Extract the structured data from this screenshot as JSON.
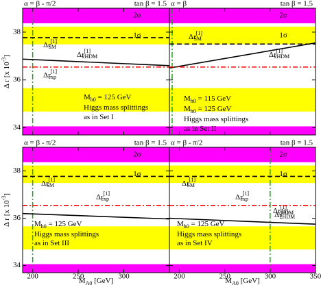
{
  "chart_data": [
    {
      "type": "line",
      "title": "α = β - π/2",
      "subtitle": "tan β = 1.5",
      "x_label": {
        "main": "M",
        "sub": "A0",
        "rest": " [GeV]"
      },
      "y_label": {
        "main": "Δ r [x 10",
        "sup": "-3",
        "rest": "]"
      },
      "xlim": [
        189,
        350
      ],
      "ylim": [
        33.7,
        39.0
      ],
      "xticks": [
        200,
        250,
        300
      ],
      "yticks": [
        34,
        36,
        38
      ],
      "show_xticklabels": false,
      "show_yticklabels": true,
      "bands": [
        {
          "lower": 38.37,
          "upper": 39.0,
          "color": "#ff00ff",
          "label": "2σ"
        },
        {
          "lower": 37.49,
          "upper": 38.23,
          "color": "#ffff00",
          "label": "1σ"
        },
        {
          "lower": 34.68,
          "upper": 35.66,
          "color": "#ffff00"
        },
        {
          "lower": 33.7,
          "upper": 34.06,
          "color": "#ff00ff"
        }
      ],
      "vlines": [
        {
          "x": 200,
          "color": "#1aa31a"
        }
      ],
      "x": [
        189,
        350
      ],
      "series": [
        {
          "name": {
            "main": "Δr",
            "sub": "SM",
            "sup": "[1]"
          },
          "color": "#000000",
          "dash": "dashed",
          "values": [
            37.77,
            37.77
          ]
        },
        {
          "name": {
            "main": "Δr",
            "sub": "2HDM",
            "sup": "[1]"
          },
          "color": "#000000",
          "dash": "solid",
          "values": [
            36.87,
            36.6
          ]
        },
        {
          "name": {
            "main": "Δr",
            "sub": "exp",
            "sup": "[1]"
          },
          "color": "#ff0000",
          "dash": "dashdot",
          "values": [
            36.54,
            36.54
          ]
        }
      ],
      "annotations": [
        {
          "main": "M",
          "sub": "h0",
          "rest": " = 125 GeV"
        },
        {
          "main": "Higgs mass splittings"
        },
        {
          "main": "as in Set I"
        }
      ]
    },
    {
      "type": "line",
      "title": "α = β",
      "subtitle": "tan β = 1.5",
      "xlim": [
        189,
        350
      ],
      "ylim": [
        33.7,
        39.0
      ],
      "xticks": [
        200,
        250,
        300,
        350
      ],
      "yticks": [
        34,
        36,
        38
      ],
      "show_xticklabels": false,
      "show_yticklabels": false,
      "bands": [
        {
          "lower": 38.37,
          "upper": 39.0,
          "color": "#ff00ff",
          "label": "2σ"
        },
        {
          "lower": 37.49,
          "upper": 38.23,
          "color": "#ffff00",
          "label": "1σ"
        },
        {
          "lower": 34.68,
          "upper": 35.66,
          "color": "#ffff00"
        },
        {
          "lower": 33.7,
          "upper": 34.06,
          "color": "#ff00ff"
        }
      ],
      "vlines": [
        {
          "x": 192,
          "color": "#1aa31a"
        }
      ],
      "x": [
        189,
        350
      ],
      "series": [
        {
          "name": {
            "main": "Δr",
            "sub": "SM",
            "sup": "[1]"
          },
          "color": "#000000",
          "dash": "dashed",
          "values": [
            37.5,
            37.5
          ]
        },
        {
          "name": {
            "main": "Δr",
            "sub": "2HDM",
            "sup": "[1]"
          },
          "color": "#000000",
          "dash": "solid",
          "values": [
            36.5,
            37.55
          ]
        },
        {
          "color": "#ff0000",
          "dash": "dashdot",
          "values": [
            36.54,
            36.54
          ]
        }
      ],
      "annotations": [
        {
          "main": "M",
          "sub": "h0",
          "rest": " = 115 GeV"
        },
        {
          "main": "M",
          "sub": "h0",
          "rest": " = 125 GeV"
        },
        {
          "main": "Higgs mass splittings"
        },
        {
          "main": "as in Set II"
        }
      ]
    },
    {
      "type": "line",
      "title": "α = β - π/2",
      "subtitle": "tan β = 1.5",
      "x_label": {
        "main": "M",
        "sub": "A0",
        "rest": " [GeV]"
      },
      "y_label": {
        "main": "Δ r [x 10",
        "sup": "-3",
        "rest": "]"
      },
      "xlim": [
        189,
        350
      ],
      "ylim": [
        33.7,
        39.0
      ],
      "xticks": [
        200,
        250,
        300
      ],
      "yticks": [
        34,
        36,
        38
      ],
      "show_xticklabels": true,
      "show_yticklabels": true,
      "bands": [
        {
          "lower": 38.37,
          "upper": 39.0,
          "color": "#ff00ff",
          "label": "2σ"
        },
        {
          "lower": 37.49,
          "upper": 38.23,
          "color": "#ffff00",
          "label": "1σ"
        },
        {
          "lower": 34.68,
          "upper": 35.66,
          "color": "#ffff00"
        },
        {
          "lower": 33.7,
          "upper": 34.06,
          "color": "#ff00ff"
        }
      ],
      "vlines": [
        {
          "x": 200,
          "color": "#1aa31a"
        }
      ],
      "x": [
        189,
        350
      ],
      "series": [
        {
          "name": {
            "main": "Δr",
            "sub": "SM",
            "sup": "[1]"
          },
          "color": "#000000",
          "dash": "dashed",
          "values": [
            37.77,
            37.77
          ]
        },
        {
          "name": {
            "main": "Δr",
            "sub": "exp",
            "sup": "[1]"
          },
          "color": "#ff0000",
          "dash": "dashdot",
          "values": [
            36.54,
            36.54
          ]
        },
        {
          "name": {
            "main": "Δr",
            "sub": "2HDM",
            "sup": "[1]"
          },
          "color": "#000000",
          "dash": "solid",
          "values": [
            36.2,
            35.97
          ]
        }
      ],
      "annotations": [
        {
          "main": "M",
          "sub": "h0",
          "rest": " = 125 GeV"
        },
        {
          "main": "Higgs mass splittings"
        },
        {
          "main": "as in Set III"
        }
      ]
    },
    {
      "type": "line",
      "title": "α = β - π/2",
      "subtitle": "tan β = 1.5",
      "x_label": {
        "main": "M",
        "sub": "A0",
        "rest": " [GeV]"
      },
      "xlim": [
        189,
        350
      ],
      "ylim": [
        33.7,
        39.0
      ],
      "xticks": [
        200,
        250,
        300,
        350
      ],
      "yticks": [
        34,
        36,
        38
      ],
      "show_xticklabels": true,
      "show_yticklabels": false,
      "bands": [
        {
          "lower": 38.37,
          "upper": 39.0,
          "color": "#ff00ff",
          "label": "2σ"
        },
        {
          "lower": 37.49,
          "upper": 38.23,
          "color": "#ffff00",
          "label": "1σ"
        },
        {
          "lower": 34.68,
          "upper": 35.66,
          "color": "#ffff00"
        },
        {
          "lower": 33.7,
          "upper": 34.06,
          "color": "#ff00ff"
        }
      ],
      "vlines": [
        {
          "x": 300,
          "color": "#1aa31a"
        }
      ],
      "x": [
        189,
        350
      ],
      "series": [
        {
          "name": {
            "main": "Δr",
            "sub": "SM",
            "sup": "[1]"
          },
          "color": "#000000",
          "dash": "dashed",
          "values": [
            37.77,
            37.77
          ]
        },
        {
          "name": {
            "main": "Δr",
            "sub": "exp",
            "sup": "[1]"
          },
          "color": "#ff0000",
          "dash": "dashdot",
          "values": [
            36.54,
            36.54
          ]
        },
        {
          "name": {
            "main": "Δr",
            "sub": "2HDM",
            "sup": "[1]"
          },
          "color": "#000000",
          "dash": "solid",
          "values": [
            36.0,
            35.75
          ]
        }
      ],
      "annotations": [
        {
          "main": "M",
          "sub": "h0",
          "rest": " = 125 GeV"
        },
        {
          "main": "Higgs mass splittings"
        },
        {
          "main": "as in Set IV"
        }
      ]
    }
  ]
}
